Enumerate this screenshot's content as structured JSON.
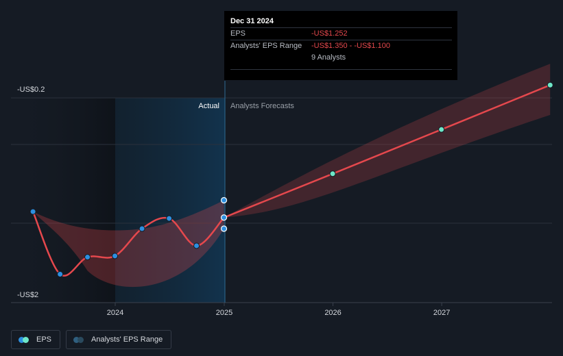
{
  "chart_data": {
    "type": "line",
    "y_axis_top_label": "-US$0.2",
    "y_axis_bottom_label": "-US$2",
    "ylim": [
      -2,
      -0.2
    ],
    "x_ticks": [
      "2024",
      "2025",
      "2026",
      "2027"
    ],
    "region_labels": {
      "actual": "Actual",
      "forecast": "Analysts Forecasts"
    },
    "series": [
      {
        "name": "EPS",
        "color": "#e5484d",
        "actual": [
          {
            "x": "2023-03-31",
            "y": -1.2
          },
          {
            "x": "2023-06-30",
            "y": -1.75
          },
          {
            "x": "2023-09-30",
            "y": -1.6
          },
          {
            "x": "2023-12-31",
            "y": -1.59
          },
          {
            "x": "2024-03-31",
            "y": -1.35
          },
          {
            "x": "2024-06-30",
            "y": -1.26
          },
          {
            "x": "2024-09-30",
            "y": -1.5
          },
          {
            "x": "2024-12-31",
            "y": -1.252
          }
        ],
        "forecast": [
          {
            "x": "2024-12-31",
            "y": -1.252
          },
          {
            "x": "2025-12-31",
            "y": -0.867
          },
          {
            "x": "2026-12-31",
            "y": -0.478
          },
          {
            "x": "2027-12-31",
            "y": -0.087
          }
        ]
      }
    ],
    "range": {
      "name": "Analysts' EPS Range",
      "color": "#e5484d",
      "high_points": [
        {
          "x": "2024-12-31",
          "y": -1.1
        },
        {
          "x": "2027-12-31",
          "y": 0.1
        }
      ],
      "low_points": [
        {
          "x": "2024-12-31",
          "y": -1.35
        },
        {
          "x": "2027-12-31",
          "y": -0.35
        }
      ]
    }
  },
  "tooltip": {
    "date": "Dec 31 2024",
    "eps_label": "EPS",
    "eps_value": "-US$1.252",
    "range_label": "Analysts' EPS Range",
    "range_value": "-US$1.350 - -US$1.100",
    "analysts": "9 Analysts"
  },
  "legend": {
    "eps": "EPS",
    "range": "Analysts' EPS Range"
  },
  "colors": {
    "eps_line": "#e5484d",
    "actual_dot": "#2d8fe0",
    "forecast_dot": "#6ee7c8",
    "highlight_band": "#0f2b40",
    "range_fill": "#e5484d"
  }
}
